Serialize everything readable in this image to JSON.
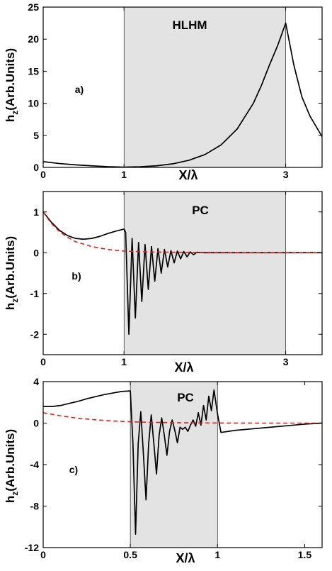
{
  "chart_data": [
    {
      "type": "line",
      "panel_label": "a)",
      "region_label": "HLHM",
      "xlabel": "X/λ",
      "ylabel": "h",
      "ylabel_sub": "z",
      "ylabel_rest": "(Arb.Units)",
      "xlim": [
        0,
        3.45
      ],
      "ylim": [
        0,
        25
      ],
      "xticks": [
        0,
        1,
        3
      ],
      "yticks": [
        0,
        5,
        10,
        15,
        20,
        25
      ],
      "shaded_region": [
        1,
        3
      ],
      "grid": false,
      "series": [
        {
          "color": "#000000",
          "style": "solid",
          "x": [
            0,
            0.2,
            0.4,
            0.6,
            0.8,
            1.0,
            1.2,
            1.4,
            1.6,
            1.8,
            2.0,
            2.2,
            2.4,
            2.6,
            2.7,
            2.8,
            2.9,
            3.0,
            3.1,
            3.2,
            3.3,
            3.45
          ],
          "y": [
            0.9,
            0.6,
            0.4,
            0.25,
            0.12,
            0.05,
            0.1,
            0.25,
            0.55,
            1.1,
            2.0,
            3.5,
            6.0,
            10.0,
            12.8,
            16.0,
            19.0,
            22.5,
            16.0,
            11.0,
            8.0,
            4.8
          ]
        }
      ]
    },
    {
      "type": "line",
      "panel_label": "b)",
      "region_label": "PC",
      "xlabel": "X/λ",
      "ylabel": "h",
      "ylabel_sub": "z",
      "ylabel_rest": "(Arb.Units)",
      "xlim": [
        0,
        3.45
      ],
      "ylim": [
        -2.5,
        1.5
      ],
      "xticks": [
        0,
        1,
        3
      ],
      "yticks": [
        -2,
        -1,
        0,
        1
      ],
      "shaded_region": [
        1,
        3
      ],
      "grid": false,
      "series": [
        {
          "color": "#000000",
          "style": "solid",
          "x": [
            0,
            0.1,
            0.2,
            0.3,
            0.4,
            0.5,
            0.6,
            0.7,
            0.8,
            0.9,
            1.0,
            1.02,
            1.06,
            1.1,
            1.14,
            1.18,
            1.22,
            1.26,
            1.3,
            1.34,
            1.38,
            1.42,
            1.46,
            1.5,
            1.54,
            1.58,
            1.62,
            1.66,
            1.7,
            1.74,
            1.78,
            1.82,
            1.86,
            1.9,
            2.0,
            2.2,
            2.5,
            3.0,
            3.45
          ],
          "y": [
            1.0,
            0.75,
            0.55,
            0.42,
            0.35,
            0.33,
            0.35,
            0.4,
            0.47,
            0.53,
            0.58,
            0.5,
            -2.0,
            0.35,
            -1.6,
            0.25,
            -1.2,
            0.2,
            -0.9,
            0.15,
            -0.7,
            0.1,
            -0.5,
            0.08,
            -0.35,
            0.05,
            -0.25,
            0.04,
            -0.15,
            0.03,
            -0.1,
            0.02,
            -0.05,
            0.01,
            0.0,
            0.0,
            0.0,
            0.0,
            0.0
          ]
        },
        {
          "color": "#e0201b",
          "style": "dashed",
          "x": [
            0,
            0.1,
            0.2,
            0.3,
            0.4,
            0.6,
            0.8,
            1.0,
            1.3,
            1.6,
            2.0,
            2.5,
            3.0,
            3.45
          ],
          "y": [
            1.0,
            0.72,
            0.52,
            0.38,
            0.27,
            0.15,
            0.08,
            0.04,
            0.02,
            0.01,
            0.005,
            0.0,
            0.0,
            0.0
          ]
        }
      ]
    },
    {
      "type": "line",
      "panel_label": "c)",
      "region_label": "PC",
      "xlabel": "X/λ",
      "ylabel": "h",
      "ylabel_sub": "z",
      "ylabel_rest": "(Arb.Units)",
      "xlim": [
        0,
        1.6
      ],
      "ylim": [
        -12,
        4
      ],
      "xticks": [
        0,
        0.5,
        1,
        1.5
      ],
      "yticks": [
        -12,
        -8,
        -4,
        0,
        4
      ],
      "shaded_region": [
        0.5,
        1
      ],
      "grid": false,
      "series": [
        {
          "color": "#000000",
          "style": "solid",
          "x": [
            0,
            0.05,
            0.1,
            0.15,
            0.2,
            0.25,
            0.3,
            0.35,
            0.4,
            0.45,
            0.5,
            0.515,
            0.53,
            0.545,
            0.56,
            0.575,
            0.59,
            0.605,
            0.62,
            0.635,
            0.65,
            0.665,
            0.68,
            0.695,
            0.71,
            0.725,
            0.74,
            0.755,
            0.77,
            0.785,
            0.8,
            0.815,
            0.83,
            0.845,
            0.86,
            0.875,
            0.89,
            0.905,
            0.92,
            0.935,
            0.95,
            0.965,
            0.98,
            1.0,
            1.02,
            1.1,
            1.2,
            1.3,
            1.4,
            1.5,
            1.6
          ],
          "y": [
            1.6,
            1.6,
            1.7,
            1.9,
            2.1,
            2.35,
            2.55,
            2.75,
            2.9,
            3.05,
            3.1,
            -2.0,
            -10.7,
            -2.0,
            1.1,
            -3.0,
            -7.4,
            -2.0,
            0.8,
            -2.0,
            -4.9,
            -1.2,
            0.5,
            -1.2,
            -3.1,
            -0.8,
            0.3,
            -0.7,
            -1.9,
            -0.4,
            -0.6,
            -0.4,
            -0.8,
            -0.2,
            0.3,
            -0.3,
            1.0,
            -0.2,
            1.7,
            0.3,
            2.6,
            1.2,
            3.2,
            0.9,
            -0.9,
            -0.7,
            -0.55,
            -0.4,
            -0.25,
            -0.1,
            0.0
          ]
        },
        {
          "color": "#e0201b",
          "style": "dashed",
          "x": [
            0,
            0.05,
            0.1,
            0.15,
            0.2,
            0.3,
            0.4,
            0.5,
            0.6,
            0.8,
            1.0,
            1.2,
            1.6
          ],
          "y": [
            1.0,
            0.85,
            0.7,
            0.58,
            0.47,
            0.32,
            0.2,
            0.13,
            0.08,
            0.03,
            0.01,
            0.0,
            0.0
          ]
        }
      ]
    }
  ]
}
